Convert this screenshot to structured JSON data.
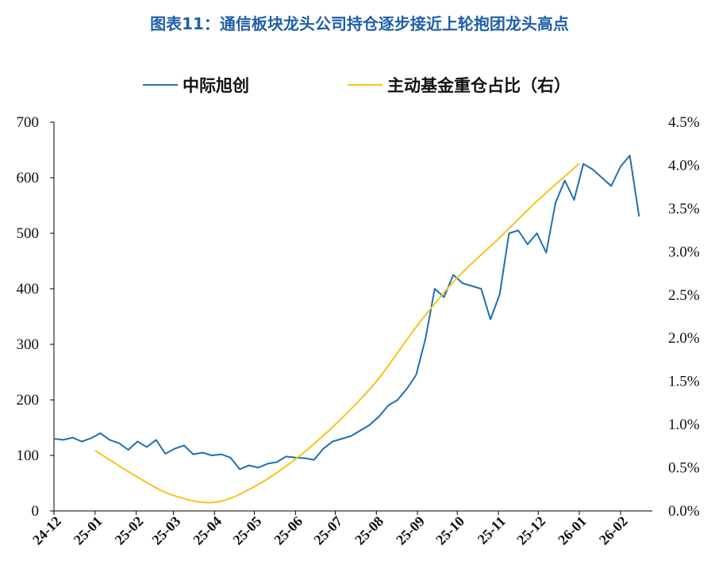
{
  "title": "图表11：通信板块龙头公司持仓逐步接近上轮抱团龙头高点",
  "chart_data": {
    "type": "line",
    "series": [
      {
        "name": "中际旭创",
        "axis": "left",
        "color": "#1f6fb2",
        "x": [
          "24-12-01",
          "24-12-08",
          "24-12-15",
          "24-12-22",
          "24-12-29",
          "25-01-05",
          "25-01-12",
          "25-01-19",
          "25-01-26",
          "25-02-02",
          "25-02-09",
          "25-02-16",
          "25-02-23",
          "25-03-02",
          "25-03-09",
          "25-03-16",
          "25-03-23",
          "25-03-30",
          "25-04-06",
          "25-04-13",
          "25-04-20",
          "25-04-27",
          "25-05-04",
          "25-05-11",
          "25-05-18",
          "25-05-25",
          "25-06-01",
          "25-06-08",
          "25-06-15",
          "25-06-22",
          "25-06-29",
          "25-07-06",
          "25-07-13",
          "25-07-20",
          "25-07-27",
          "25-08-03",
          "25-08-10",
          "25-08-17",
          "25-08-24",
          "25-08-31",
          "25-09-07",
          "25-09-14",
          "25-09-21",
          "25-09-28",
          "25-10-05",
          "25-10-12",
          "25-10-19",
          "25-10-26",
          "25-11-02",
          "25-11-09",
          "25-11-16",
          "25-11-23",
          "25-11-30",
          "25-12-07",
          "25-12-14",
          "25-12-21",
          "25-12-28",
          "26-01-04",
          "26-01-11",
          "26-01-18",
          "26-01-25",
          "26-02-01",
          "26-02-08",
          "26-02-15"
        ],
        "values": [
          130,
          128,
          132,
          125,
          131,
          140,
          128,
          122,
          110,
          125,
          115,
          128,
          103,
          112,
          118,
          102,
          105,
          100,
          102,
          96,
          75,
          82,
          78,
          85,
          88,
          98,
          96,
          95,
          92,
          112,
          125,
          130,
          135,
          145,
          155,
          170,
          190,
          200,
          220,
          245,
          310,
          400,
          385,
          425,
          410,
          405,
          400,
          345,
          390,
          500,
          505,
          480,
          500,
          465,
          555,
          595,
          560,
          625,
          615,
          600,
          585,
          620,
          640,
          530
        ]
      },
      {
        "name": "主动基金重仓占比（右）",
        "axis": "right",
        "color": "#f5c518",
        "x": [
          "25-01-01",
          "25-02-01",
          "25-03-01",
          "25-04-01",
          "25-05-01",
          "25-06-01",
          "25-07-01",
          "25-08-01",
          "25-09-01",
          "25-10-01",
          "25-11-01",
          "25-12-01",
          "26-01-01"
        ],
        "values": [
          0.7,
          0.4,
          0.18,
          0.1,
          0.28,
          0.6,
          1.0,
          1.5,
          2.15,
          2.7,
          3.15,
          3.6,
          4.02
        ]
      }
    ],
    "x_ticks": [
      "24-12",
      "25-01",
      "25-02",
      "25-03",
      "25-04",
      "25-05",
      "25-06",
      "25-07",
      "25-08",
      "25-09",
      "25-10",
      "25-11",
      "25-12",
      "26-01",
      "26-02"
    ],
    "y_left": {
      "ticks": [
        "0",
        "100",
        "200",
        "300",
        "400",
        "500",
        "600",
        "700"
      ],
      "ylim": [
        0,
        700
      ]
    },
    "y_right": {
      "ticks": [
        "0.0%",
        "0.5%",
        "1.0%",
        "1.5%",
        "2.0%",
        "2.5%",
        "3.0%",
        "3.5%",
        "4.0%",
        "4.5%"
      ],
      "ylim": [
        0,
        4.5
      ]
    },
    "xlim": [
      "24-12-01",
      "26-02-25"
    ],
    "legend_position": "top",
    "grid": false
  }
}
